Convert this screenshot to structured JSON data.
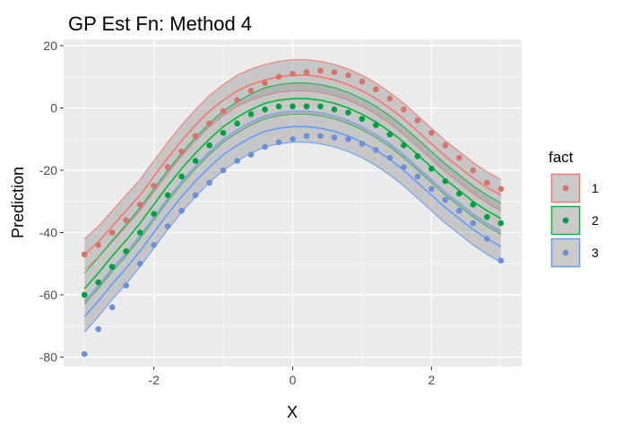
{
  "chart_data": {
    "type": "scatter",
    "title": "GP Est Fn: Method 4",
    "xlabel": "X",
    "ylabel": "Prediction",
    "xlim": [
      -3.3,
      3.3
    ],
    "ylim": [
      -83,
      22
    ],
    "x_ticks": [
      -2,
      0,
      2
    ],
    "x_tick_labels": [
      "-2",
      "0",
      "2"
    ],
    "y_ticks": [
      -80,
      -60,
      -40,
      -20,
      0,
      20
    ],
    "y_tick_labels": [
      "-80",
      "-60",
      "-40",
      "-20",
      "0",
      "20"
    ],
    "grid": true,
    "panel_background": "#ebebeb",
    "legend": {
      "title": "fact",
      "position": "right"
    },
    "series": [
      {
        "name": "1",
        "color": "#d6736b",
        "band_color": "#f8766d",
        "line_color": "#f8766d",
        "x": [
          -3.0,
          -2.8,
          -2.6,
          -2.4,
          -2.2,
          -2.0,
          -1.8,
          -1.6,
          -1.4,
          -1.2,
          -1.0,
          -0.8,
          -0.6,
          -0.4,
          -0.2,
          0.0,
          0.2,
          0.4,
          0.6,
          0.8,
          1.0,
          1.2,
          1.4,
          1.6,
          1.8,
          2.0,
          2.2,
          2.4,
          2.6,
          2.8,
          3.0
        ],
        "y": [
          -47,
          -44,
          -40,
          -36,
          -31,
          -25,
          -19,
          -14,
          -9,
          -5,
          -1,
          2.5,
          5.5,
          8,
          10,
          11,
          11.5,
          12,
          11.5,
          10.5,
          8.5,
          6,
          3,
          -0.5,
          -4,
          -8,
          -12,
          -16,
          -20,
          -24,
          -26
        ],
        "line": [
          -47,
          -43,
          -38,
          -33,
          -28,
          -22,
          -16,
          -10.5,
          -5.5,
          -1,
          2.5,
          5.5,
          7.5,
          9,
          10,
          10.5,
          10.5,
          10,
          9,
          7.5,
          5.5,
          3,
          0,
          -3.5,
          -7.5,
          -11.5,
          -15.5,
          -19,
          -22.5,
          -25.5,
          -28
        ],
        "lower": [
          -52,
          -48,
          -43,
          -38,
          -33,
          -27,
          -21,
          -15.5,
          -10.5,
          -6,
          -2.5,
          0.5,
          2.5,
          4,
          5,
          5.5,
          5.5,
          5,
          4,
          2.5,
          0.5,
          -2,
          -5,
          -8.5,
          -12.5,
          -16.5,
          -20.5,
          -24,
          -27.5,
          -30.5,
          -33
        ],
        "upper": [
          -42,
          -38,
          -33,
          -28,
          -23,
          -17,
          -11,
          -5.5,
          -0.5,
          4,
          7.5,
          10.5,
          12.5,
          14,
          15,
          15.5,
          15.5,
          15,
          14,
          12.5,
          10.5,
          8,
          5,
          1.5,
          -2.5,
          -6.5,
          -10.5,
          -14,
          -17.5,
          -20.5,
          -23
        ]
      },
      {
        "name": "2",
        "color": "#00a040",
        "band_color": "#00ba38",
        "line_color": "#00ba38",
        "x": [
          -3.0,
          -2.8,
          -2.6,
          -2.4,
          -2.2,
          -2.0,
          -1.8,
          -1.6,
          -1.4,
          -1.2,
          -1.0,
          -0.8,
          -0.6,
          -0.4,
          -0.2,
          0.0,
          0.2,
          0.4,
          0.6,
          0.8,
          1.0,
          1.2,
          1.4,
          1.6,
          1.8,
          2.0,
          2.2,
          2.4,
          2.6,
          2.8,
          3.0
        ],
        "y": [
          -60,
          -56,
          -51,
          -46,
          -40,
          -34,
          -28,
          -22,
          -17,
          -12,
          -8,
          -5,
          -2,
          -0.5,
          0.5,
          0.5,
          0.5,
          0.5,
          -0.5,
          -1.5,
          -3.5,
          -5.5,
          -8.5,
          -12,
          -15.5,
          -19.5,
          -23.5,
          -27.5,
          -31,
          -35,
          -37
        ],
        "line": [
          -58,
          -53,
          -47.5,
          -42.5,
          -37,
          -31,
          -25,
          -19.5,
          -14.5,
          -10,
          -6,
          -3,
          -0.5,
          1.5,
          2.5,
          3,
          3,
          2.5,
          1.5,
          0,
          -2,
          -4.5,
          -7.5,
          -11,
          -15,
          -19,
          -23,
          -26.5,
          -30,
          -33,
          -35.5
        ],
        "lower": [
          -63,
          -58,
          -52.5,
          -47.5,
          -42,
          -36,
          -30,
          -24.5,
          -19.5,
          -15,
          -11,
          -8,
          -5.5,
          -3.5,
          -2.5,
          -2,
          -2,
          -2.5,
          -3.5,
          -5,
          -7,
          -9.5,
          -12.5,
          -16,
          -20,
          -24,
          -28,
          -31.5,
          -35,
          -38,
          -40.5
        ],
        "upper": [
          -53,
          -48,
          -42.5,
          -37.5,
          -32,
          -26,
          -20,
          -14.5,
          -9.5,
          -5,
          -1,
          2,
          4.5,
          6.5,
          7.5,
          8,
          8,
          7.5,
          6.5,
          5,
          3,
          0.5,
          -2.5,
          -6,
          -10,
          -14,
          -18,
          -21.5,
          -25,
          -28,
          -30.5
        ]
      },
      {
        "name": "3",
        "color": "#6b8fd8",
        "band_color": "#619cff",
        "line_color": "#619cff",
        "x": [
          -3.0,
          -2.8,
          -2.6,
          -2.4,
          -2.2,
          -2.0,
          -1.8,
          -1.6,
          -1.4,
          -1.2,
          -1.0,
          -0.8,
          -0.6,
          -0.4,
          -0.2,
          0.0,
          0.2,
          0.4,
          0.6,
          0.8,
          1.0,
          1.2,
          1.4,
          1.6,
          1.8,
          2.0,
          2.2,
          2.4,
          2.6,
          2.8,
          3.0
        ],
        "y": [
          -79,
          -71,
          -64,
          -57,
          -50,
          -44,
          -38,
          -33,
          -28,
          -24,
          -20,
          -17,
          -15,
          -12.5,
          -11,
          -10,
          -9,
          -9,
          -9.5,
          -10,
          -11.5,
          -13.5,
          -16,
          -19,
          -22,
          -26,
          -29.5,
          -33,
          -37,
          -42,
          -49
        ],
        "line": [
          -67,
          -62,
          -56.5,
          -51.5,
          -46,
          -40,
          -34,
          -28.5,
          -23.5,
          -19,
          -15,
          -12,
          -9.5,
          -7.5,
          -6.5,
          -6,
          -6,
          -6.5,
          -7.5,
          -9,
          -11,
          -13.5,
          -16.5,
          -20,
          -24,
          -28,
          -32,
          -35.5,
          -39,
          -42,
          -44.5
        ],
        "lower": [
          -72,
          -67,
          -61.5,
          -56.5,
          -51,
          -45,
          -39,
          -33.5,
          -28.5,
          -24,
          -20,
          -17,
          -14.5,
          -12.5,
          -11.5,
          -11,
          -11,
          -11.5,
          -12.5,
          -14,
          -16,
          -18.5,
          -21.5,
          -25,
          -29,
          -33,
          -37,
          -40.5,
          -44,
          -47,
          -49.5
        ],
        "upper": [
          -62,
          -57,
          -51.5,
          -46.5,
          -41,
          -35,
          -29,
          -23.5,
          -18.5,
          -14,
          -10,
          -7,
          -4.5,
          -2.5,
          -1.5,
          -1,
          -1,
          -1.5,
          -2.5,
          -4,
          -6,
          -8.5,
          -11.5,
          -15,
          -19,
          -23,
          -27,
          -30.5,
          -34,
          -37,
          -39.5
        ]
      }
    ]
  }
}
